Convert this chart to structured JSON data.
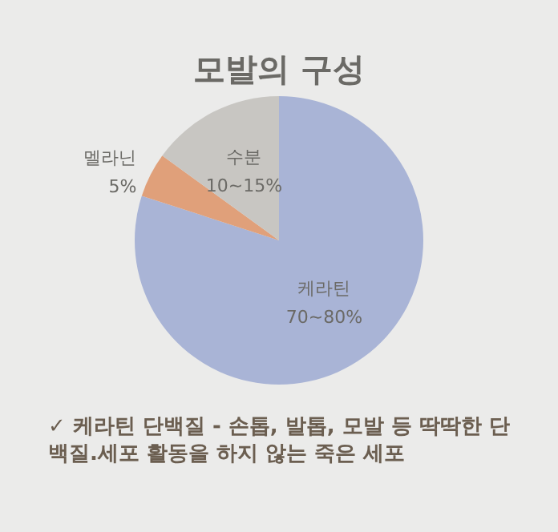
{
  "chart_data": {
    "type": "pie",
    "title": "모발의 구성",
    "categories": [
      "케라틴",
      "멜라닌",
      "수분"
    ],
    "values": [
      80,
      5,
      15
    ],
    "value_labels": [
      "70~80%",
      "5%",
      "10~15%"
    ],
    "colors": [
      "#a9b4d6",
      "#e0a07a",
      "#c8c6c2"
    ],
    "annotations": [
      "✓ 케라틴 단백질 - 손톱, 발톱, 모발 등 딱딱한 단백질.세포 활동을 하지 않는 죽은 세포"
    ]
  }
}
